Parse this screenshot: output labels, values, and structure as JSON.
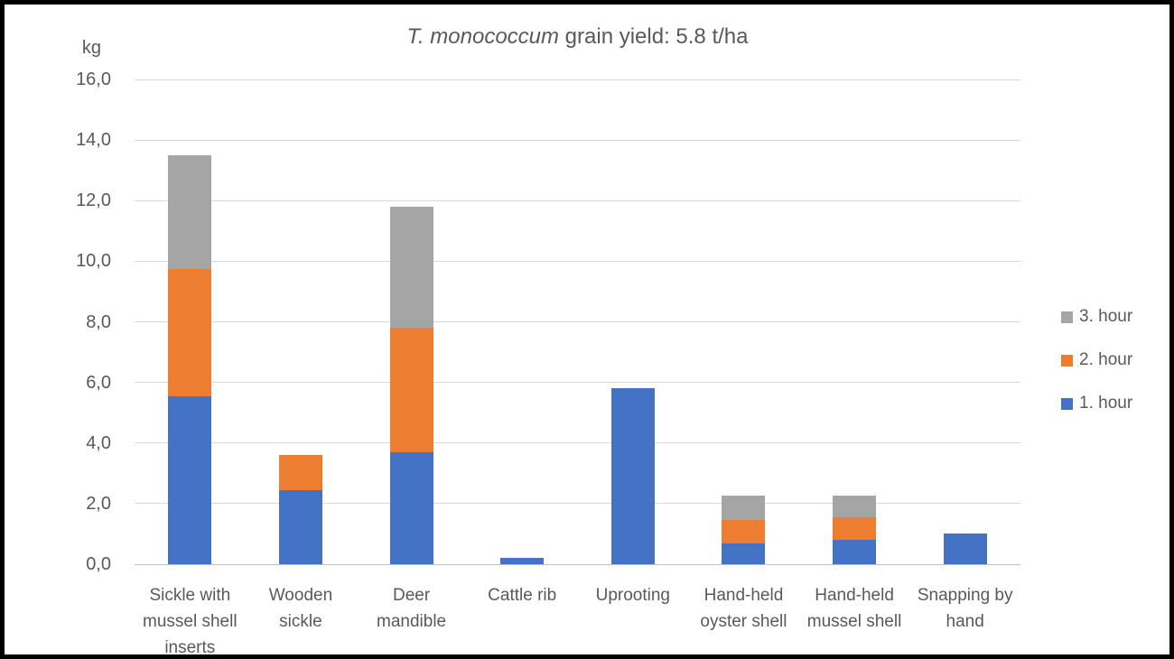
{
  "frame": {
    "background": "#ffffff",
    "border_color": "#000000"
  },
  "chart_data": {
    "type": "bar",
    "stacked": true,
    "title": {
      "italic": "T. monococcum",
      "rest": " grain yield: 5.8 t/ha"
    },
    "unit_label": "kg",
    "categories": [
      "Sickle with mussel shell inserts",
      "Wooden sickle",
      "Deer mandible",
      "Cattle rib",
      "Uprooting",
      "Hand-held oyster shell",
      "Hand-held mussel shell",
      "Snapping by hand"
    ],
    "series": [
      {
        "name": "1. hour",
        "color": "#4472C4",
        "values": [
          5.55,
          2.45,
          3.7,
          0.2,
          5.8,
          0.7,
          0.8,
          1.0
        ]
      },
      {
        "name": "2. hour",
        "color": "#ED7D31",
        "values": [
          4.2,
          1.15,
          4.1,
          0,
          0,
          0.75,
          0.75,
          0
        ]
      },
      {
        "name": "3. hour",
        "color": "#A5A5A5",
        "values": [
          3.75,
          0,
          4.0,
          0,
          0,
          0.8,
          0.7,
          0
        ]
      }
    ],
    "totals": [
      13.5,
      3.6,
      11.8,
      0.2,
      5.8,
      2.25,
      2.25,
      1.0
    ],
    "y_axis": {
      "min": 0,
      "max": 16,
      "tick_step": 2,
      "tick_labels": [
        "0,0",
        "2,0",
        "4,0",
        "6,0",
        "8,0",
        "10,0",
        "12,0",
        "14,0",
        "16,0"
      ]
    },
    "grid": true,
    "legend": {
      "position": "right",
      "order_top_to_bottom": [
        "3. hour",
        "2. hour",
        "1. hour"
      ]
    },
    "text_color": "#595959",
    "gridline_color": "#D9D9D9",
    "axis_line_color": "#BFBFBF"
  }
}
